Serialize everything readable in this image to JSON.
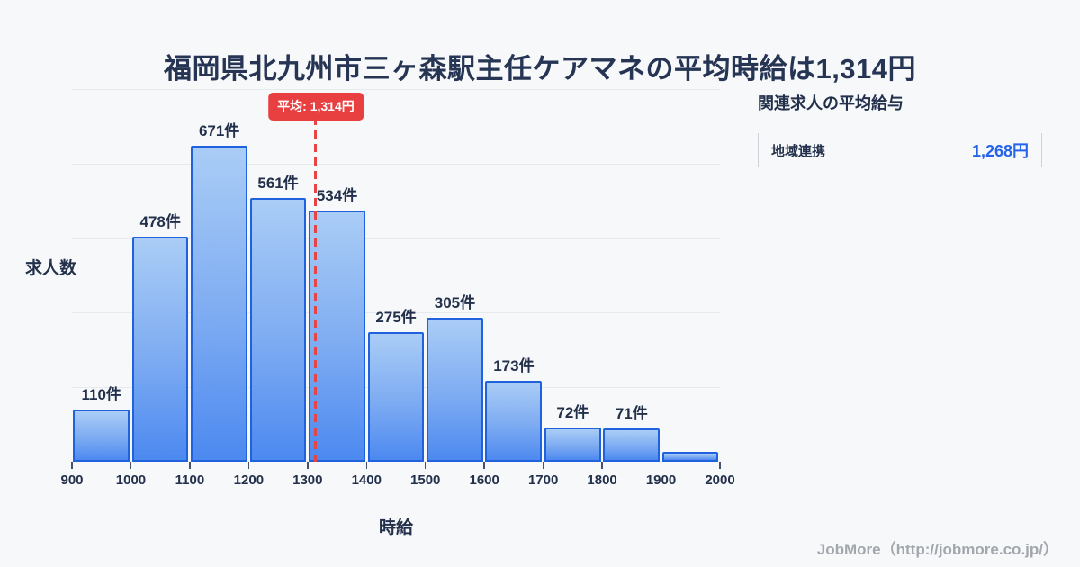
{
  "title": "福岡県北九州市三ヶ森駅主任ケアマネの平均時給は1,314円",
  "chart_data": {
    "type": "bar",
    "title": "福岡県北九州市三ヶ森駅主任ケアマネの平均時給は1,314円",
    "xlabel": "時給",
    "ylabel": "求人数",
    "bin_edges": [
      900,
      1000,
      1100,
      1200,
      1300,
      1400,
      1500,
      1600,
      1700,
      1800,
      1900,
      2000
    ],
    "x_tick_labels": [
      "900",
      "1000",
      "1100",
      "1200",
      "1300",
      "1400",
      "1500",
      "1600",
      "1700",
      "1800",
      "1900",
      "2000"
    ],
    "values": [
      110,
      478,
      671,
      561,
      534,
      275,
      305,
      173,
      72,
      71,
      22
    ],
    "bar_labels": [
      "110件",
      "478件",
      "671件",
      "561件",
      "534件",
      "275件",
      "305件",
      "173件",
      "72件",
      "71件",
      ""
    ],
    "unit": "件",
    "ylim": [
      0,
      671
    ],
    "grid": true,
    "legend": false,
    "average_value": 1314,
    "average_label": "平均: 1,314円"
  },
  "side_panel": {
    "title": "関連求人の平均給与",
    "rows": [
      {
        "label": "地域連携",
        "value": "1,268円"
      }
    ]
  },
  "footer": {
    "credit": "JobMore（http://jobmore.co.jp/）"
  },
  "colors": {
    "background": "#f7f8fa",
    "title_text": "#263554",
    "bar_fill_top": "#aacdf6",
    "bar_fill_bottom": "#4c89f0",
    "bar_border": "#2061dd",
    "average_red": "#e84040",
    "value_blue": "#2563eb",
    "gridline": "#e7eaef",
    "footer_gray": "#a2a7ae"
  }
}
